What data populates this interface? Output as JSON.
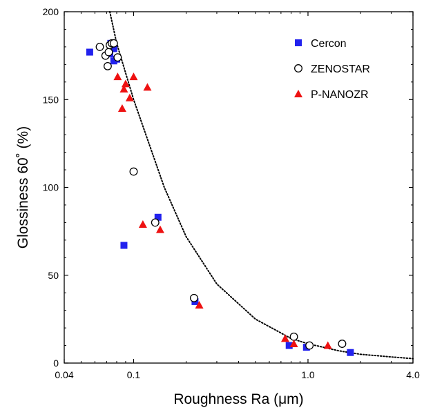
{
  "chart_data": {
    "type": "scatter",
    "title": "",
    "xlabel": "Roughness Ra (μm)",
    "ylabel": "Glossiness 60˚ (%)",
    "xscale": "log",
    "xlim": [
      0.04,
      4.0
    ],
    "ylim": [
      0,
      200
    ],
    "xticks": [
      {
        "value": 0.04,
        "label": "0.04"
      },
      {
        "value": 0.1,
        "label": "0.1"
      },
      {
        "value": 1.0,
        "label": "1.0"
      },
      {
        "value": 4.0,
        "label": "4.0"
      }
    ],
    "yticks": [
      {
        "value": 0,
        "label": "0"
      },
      {
        "value": 50,
        "label": "50"
      },
      {
        "value": 100,
        "label": "100"
      },
      {
        "value": 150,
        "label": "150"
      },
      {
        "value": 200,
        "label": "200"
      }
    ],
    "legend_position": "top-right",
    "series": [
      {
        "name": "Cercon",
        "marker": "square",
        "color": "#2222ee",
        "points": [
          [
            0.056,
            177
          ],
          [
            0.074,
            182
          ],
          [
            0.076,
            182
          ],
          [
            0.077,
            179
          ],
          [
            0.077,
            172
          ],
          [
            0.08,
            173
          ],
          [
            0.073,
            176
          ],
          [
            0.088,
            67
          ],
          [
            0.138,
            83
          ],
          [
            0.225,
            35
          ],
          [
            0.78,
            10
          ],
          [
            0.98,
            9
          ],
          [
            1.75,
            6
          ]
        ]
      },
      {
        "name": "ZENOSTAR",
        "marker": "circle-open",
        "color": "#000000",
        "points": [
          [
            0.064,
            180
          ],
          [
            0.069,
            175
          ],
          [
            0.071,
            169
          ],
          [
            0.072,
            177
          ],
          [
            0.073,
            181
          ],
          [
            0.075,
            182
          ],
          [
            0.077,
            182
          ],
          [
            0.081,
            174
          ],
          [
            0.1,
            109
          ],
          [
            0.133,
            80
          ],
          [
            0.222,
            37
          ],
          [
            0.83,
            15
          ],
          [
            1.02,
            10
          ],
          [
            1.57,
            11
          ]
        ]
      },
      {
        "name": "P-NANOZR",
        "marker": "triangle",
        "color": "#ee1111",
        "points": [
          [
            0.081,
            163
          ],
          [
            0.086,
            145
          ],
          [
            0.088,
            156
          ],
          [
            0.09,
            159
          ],
          [
            0.095,
            151
          ],
          [
            0.1,
            163
          ],
          [
            0.12,
            157
          ],
          [
            0.113,
            79
          ],
          [
            0.142,
            76
          ],
          [
            0.238,
            33
          ],
          [
            0.74,
            14
          ],
          [
            0.83,
            11
          ],
          [
            1.3,
            10
          ]
        ]
      }
    ],
    "fit_curve": {
      "style": "dotted",
      "color": "#000000",
      "points": [
        [
          0.073,
          200
        ],
        [
          0.08,
          182
        ],
        [
          0.1,
          150
        ],
        [
          0.15,
          100
        ],
        [
          0.2,
          72
        ],
        [
          0.3,
          45
        ],
        [
          0.5,
          25
        ],
        [
          0.8,
          14
        ],
        [
          1.0,
          11
        ],
        [
          1.5,
          7
        ],
        [
          2.0,
          5
        ],
        [
          3.0,
          3.5
        ],
        [
          4.0,
          2.5
        ]
      ]
    }
  }
}
